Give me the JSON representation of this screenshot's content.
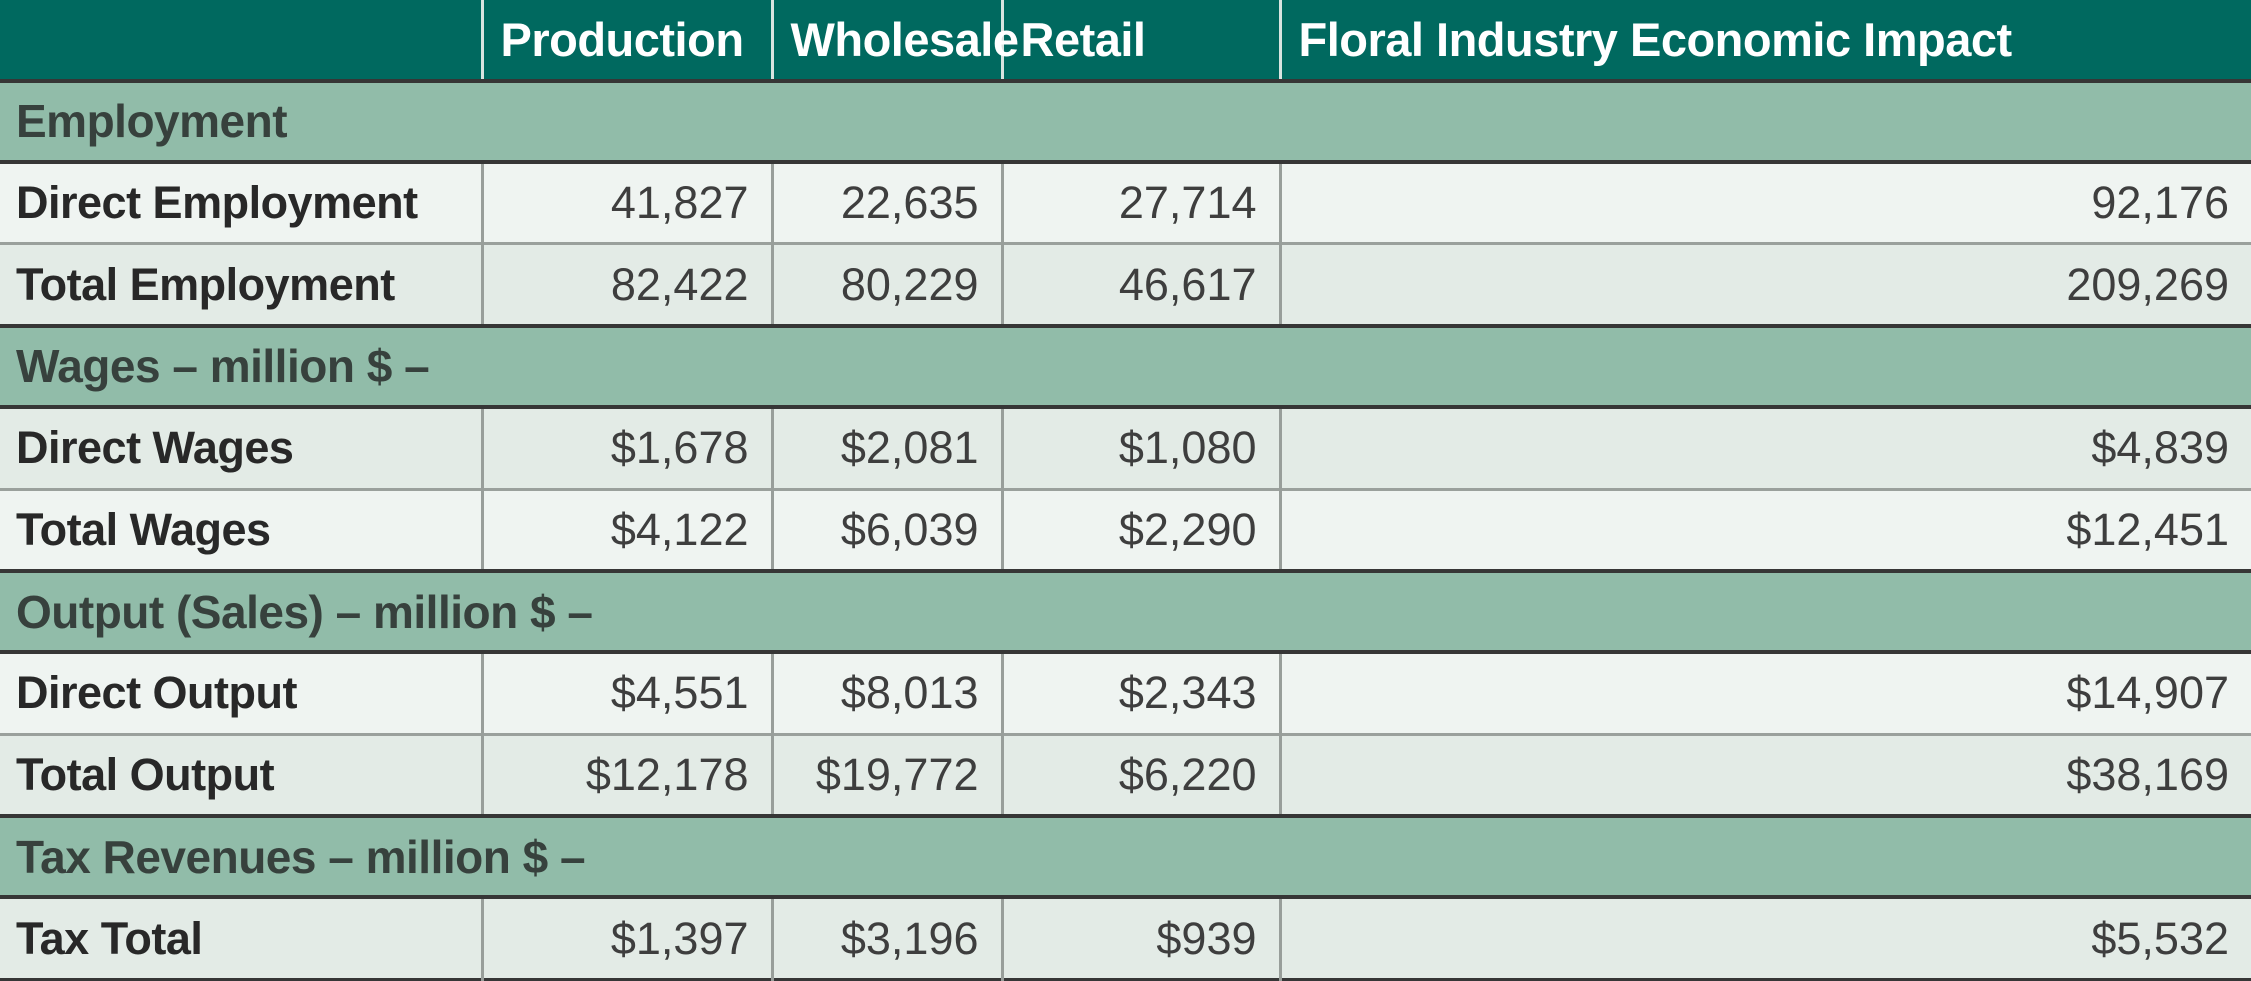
{
  "chart_data": {
    "type": "table",
    "title": "Floral Industry Economic Impact",
    "columns": [
      "",
      "Production",
      "Wholesale",
      "Retail",
      "Floral Industry Economic Impact"
    ],
    "sections": [
      {
        "title": "Employment",
        "rows": [
          {
            "label": "Direct Employment",
            "values": [
              "41,827",
              "22,635",
              "27,714",
              "92,176"
            ],
            "shade": "light"
          },
          {
            "label": "Total Employment",
            "values": [
              "82,422",
              "80,229",
              "46,617",
              "209,269"
            ],
            "shade": "dark"
          }
        ]
      },
      {
        "title": "Wages – million $ –",
        "rows": [
          {
            "label": "Direct Wages",
            "values": [
              "$1,678",
              "$2,081",
              "$1,080",
              "$4,839"
            ],
            "shade": "dark"
          },
          {
            "label": "Total Wages",
            "values": [
              "$4,122",
              "$6,039",
              "$2,290",
              "$12,451"
            ],
            "shade": "light"
          }
        ]
      },
      {
        "title": "Output (Sales) – million $ –",
        "rows": [
          {
            "label": "Direct Output",
            "values": [
              "$4,551",
              "$8,013",
              "$2,343",
              "$14,907"
            ],
            "shade": "light"
          },
          {
            "label": "Total Output",
            "values": [
              "$12,178",
              "$19,772",
              "$6,220",
              "$38,169"
            ],
            "shade": "dark"
          }
        ]
      },
      {
        "title": "Tax Revenues – million $ –",
        "rows": [
          {
            "label": "Tax Total",
            "values": [
              "$1,397",
              "$3,196",
              "$939",
              "$5,532"
            ],
            "shade": "dark"
          }
        ]
      }
    ],
    "colors": {
      "header_bg": "#00695f",
      "header_text": "#ffffff",
      "section_bg": "#91bca9",
      "section_text": "#37413d",
      "row_light": "#eff4f1",
      "row_dark": "#e3ebe6",
      "dark_border": "#363636",
      "gray_border": "#9aa09c",
      "label_text": "#282828",
      "value_text": "#3e3e3e"
    }
  }
}
